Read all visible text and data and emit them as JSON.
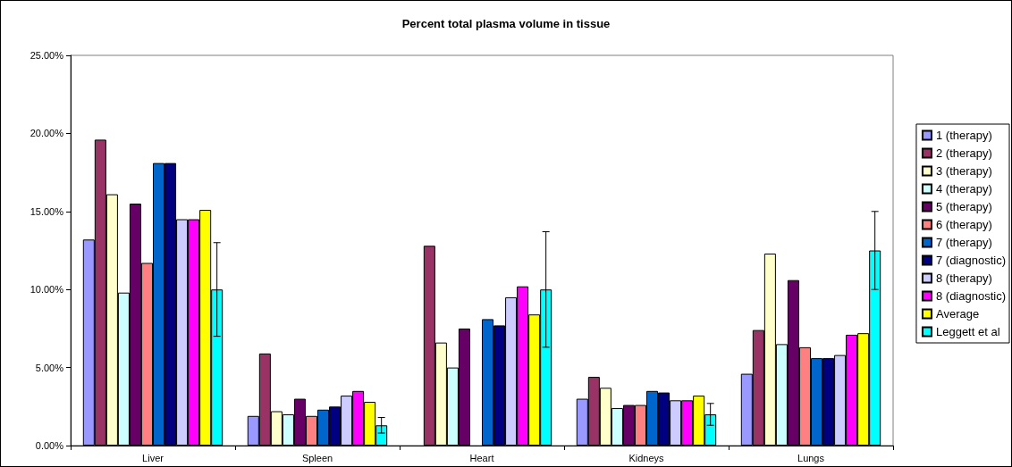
{
  "chart_data": {
    "type": "bar",
    "title": "Percent total plasma volume in tissue",
    "categories": [
      "Liver",
      "Spleen",
      "Heart",
      "Kidneys",
      "Lungs"
    ],
    "series": [
      {
        "name": "1 (therapy)",
        "color": "#9999ff",
        "values": [
          13.2,
          1.9,
          null,
          3.0,
          4.6
        ]
      },
      {
        "name": "2 (therapy)",
        "color": "#993366",
        "values": [
          19.6,
          5.9,
          12.8,
          4.4,
          7.4
        ]
      },
      {
        "name": "3 (therapy)",
        "color": "#ffffcc",
        "values": [
          16.1,
          2.2,
          6.6,
          3.7,
          12.3
        ]
      },
      {
        "name": "4 (therapy)",
        "color": "#ccffff",
        "values": [
          9.8,
          2.0,
          5.0,
          2.4,
          6.5
        ]
      },
      {
        "name": "5 (therapy)",
        "color": "#660066",
        "values": [
          15.5,
          3.0,
          7.5,
          2.6,
          10.6
        ]
      },
      {
        "name": "6 (therapy)",
        "color": "#ff8080",
        "values": [
          11.7,
          1.9,
          null,
          2.6,
          6.3
        ]
      },
      {
        "name": "7 (therapy)",
        "color": "#0066cc",
        "values": [
          18.1,
          2.3,
          8.1,
          3.5,
          5.6
        ]
      },
      {
        "name": "7 (diagnostic)",
        "color": "#000080",
        "values": [
          18.1,
          2.5,
          7.7,
          3.4,
          5.6
        ]
      },
      {
        "name": "8 (therapy)",
        "color": "#ccccff",
        "values": [
          14.5,
          3.2,
          9.5,
          2.9,
          5.8
        ]
      },
      {
        "name": "8 (diagnostic)",
        "color": "#ff00ff",
        "values": [
          14.5,
          3.5,
          10.2,
          2.9,
          7.1
        ]
      },
      {
        "name": "Average",
        "color": "#ffff00",
        "values": [
          15.1,
          2.8,
          8.4,
          3.2,
          7.2
        ]
      },
      {
        "name": "Leggett et al",
        "color": "#00ffff",
        "values": [
          10.0,
          1.3,
          10.0,
          2.0,
          12.5
        ],
        "errors": [
          3.0,
          0.5,
          3.7,
          0.7,
          2.5
        ]
      }
    ],
    "ylim": [
      0,
      25
    ],
    "yticks": [
      {
        "value": 0,
        "label": "0.00%"
      },
      {
        "value": 5,
        "label": "5.00%"
      },
      {
        "value": 10,
        "label": "10.00%"
      },
      {
        "value": 15,
        "label": "15.00%"
      },
      {
        "value": 20,
        "label": "20.00%"
      },
      {
        "value": 25,
        "label": "25.00%"
      }
    ],
    "grid": false,
    "legend": "right"
  }
}
